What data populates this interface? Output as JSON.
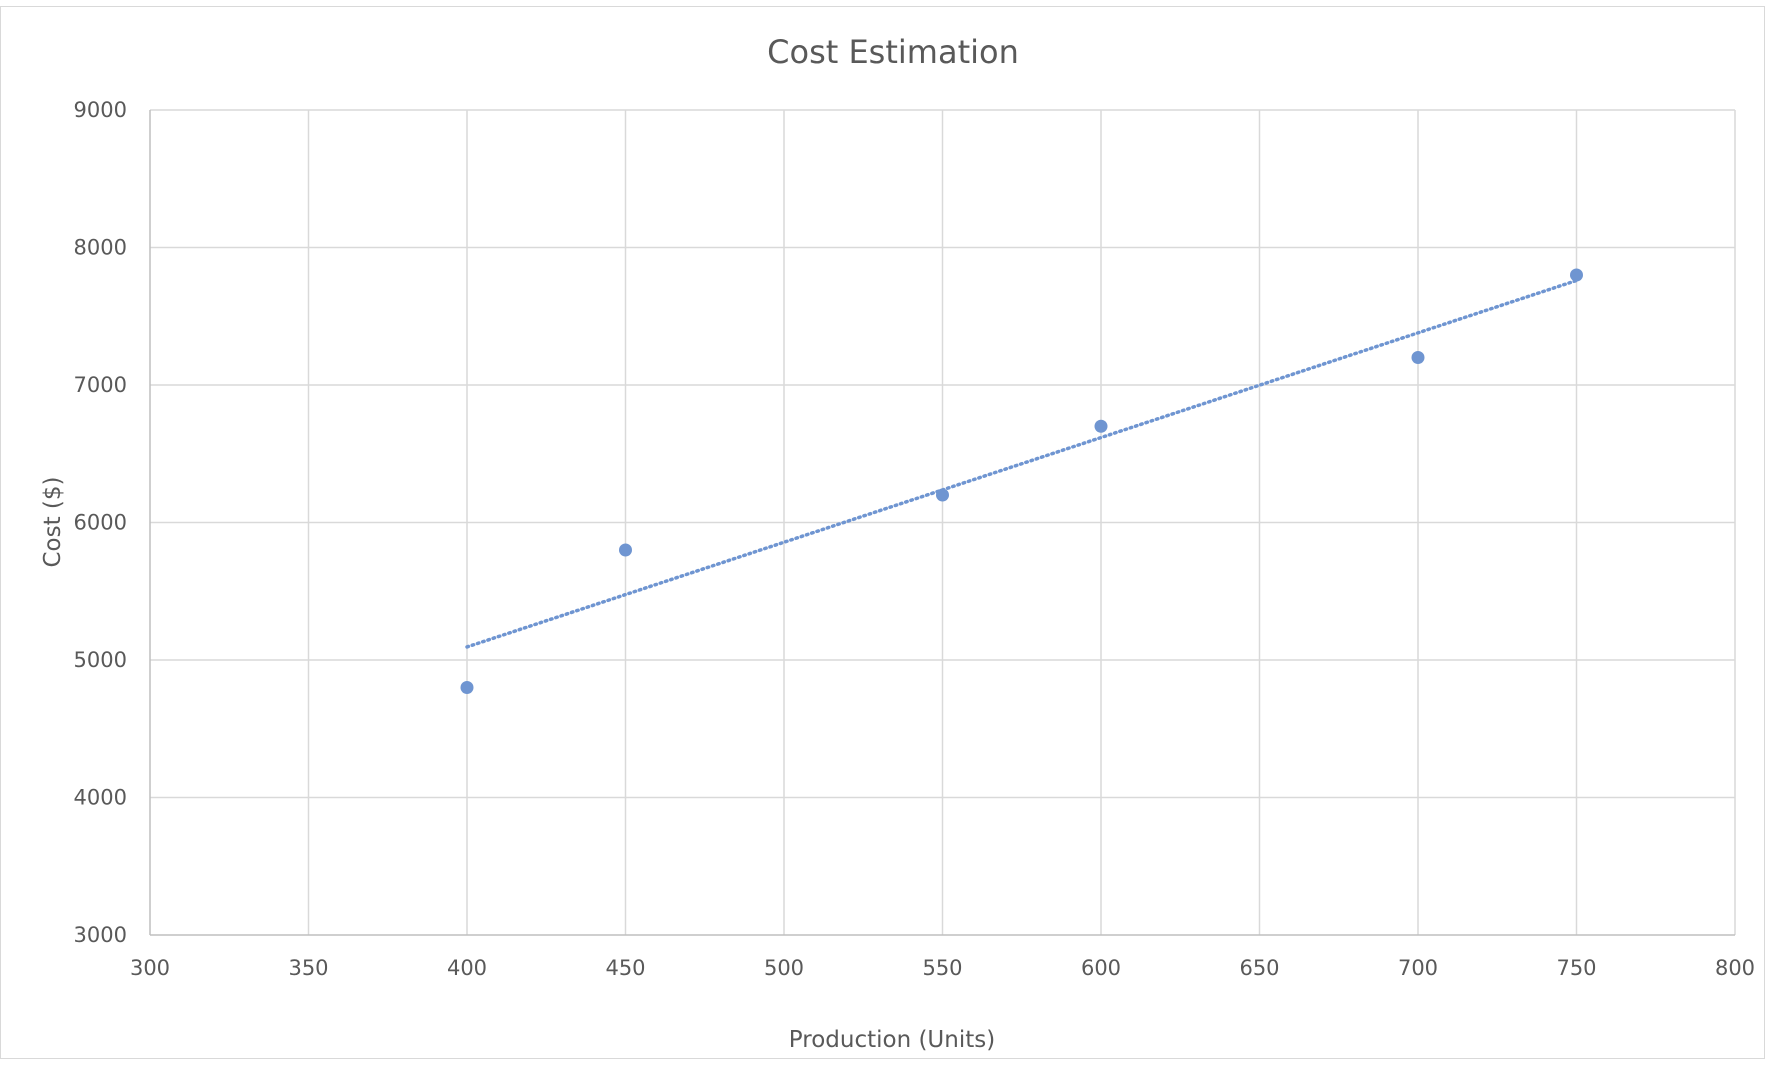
{
  "chart_data": {
    "type": "scatter",
    "title": "Cost Estimation",
    "xlabel": "Production (Units)",
    "ylabel": "Cost ($)",
    "xlim": [
      300,
      800
    ],
    "ylim": [
      3000,
      9000
    ],
    "x_ticks": [
      300,
      350,
      400,
      450,
      500,
      550,
      600,
      650,
      700,
      750,
      800
    ],
    "y_ticks": [
      3000,
      4000,
      5000,
      6000,
      7000,
      8000,
      9000
    ],
    "grid": true,
    "legend": "none",
    "series": [
      {
        "x": [
          400,
          450,
          550,
          600,
          700,
          750
        ],
        "y": [
          4800,
          5800,
          6200,
          6700,
          7200,
          7800
        ],
        "color": "#6f95d1"
      }
    ],
    "trendline": {
      "type": "linear",
      "style": "dotted",
      "color": "#6f95d1",
      "x": [
        400,
        750
      ],
      "y": [
        5095,
        7760
      ]
    }
  }
}
